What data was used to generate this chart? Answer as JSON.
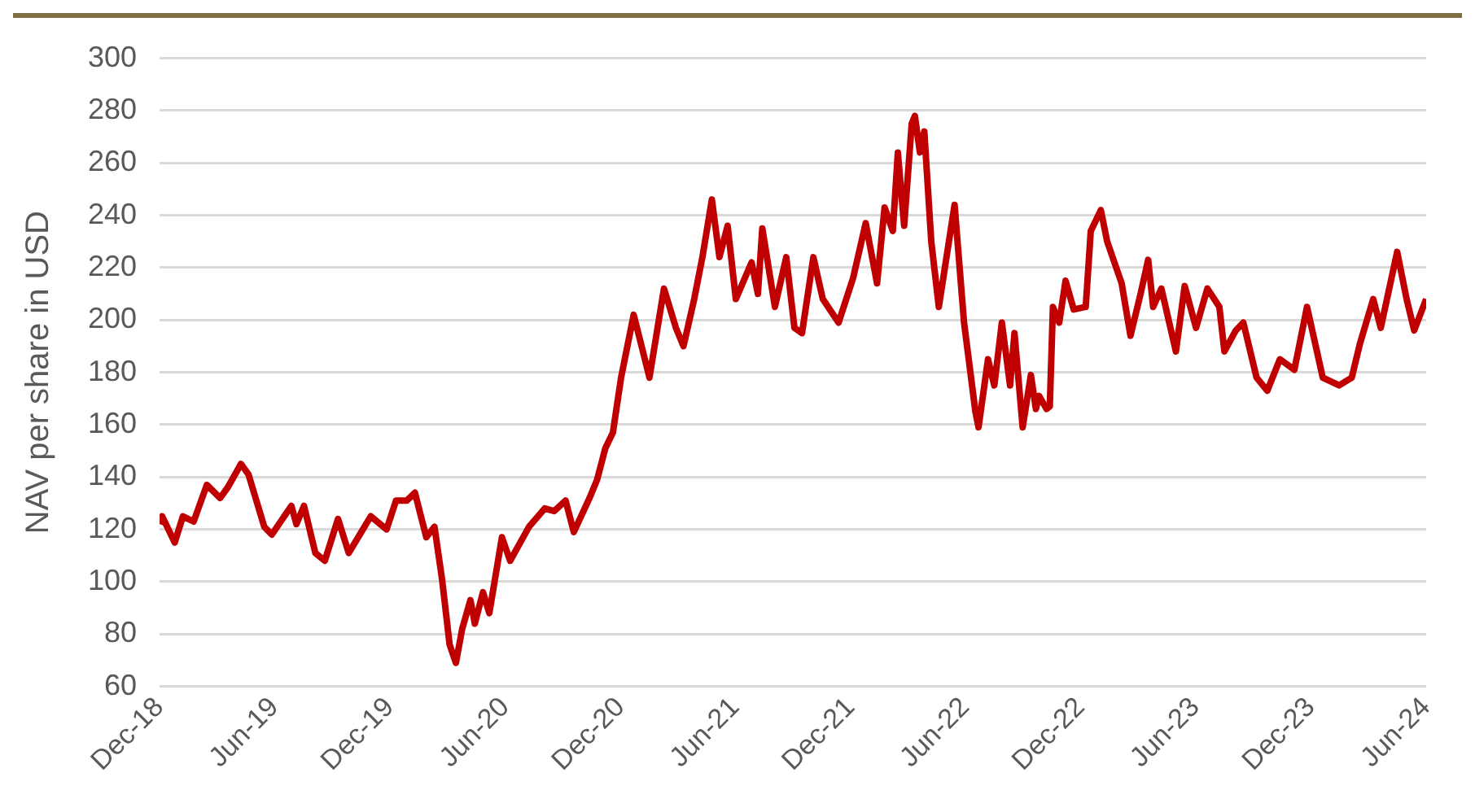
{
  "chart_data": {
    "type": "line",
    "ylabel": "NAV per share in USD",
    "x": [
      "2018-12-01",
      "2018-12-05",
      "2018-12-25",
      "2019-01-07",
      "2019-01-24",
      "2019-02-14",
      "2019-03-07",
      "2019-03-19",
      "2019-04-09",
      "2019-04-21",
      "2019-05-16",
      "2019-05-28",
      "2019-06-28",
      "2019-07-06",
      "2019-07-18",
      "2019-08-05",
      "2019-08-20",
      "2019-09-10",
      "2019-09-27",
      "2019-11-01",
      "2019-11-26",
      "2019-12-11",
      "2019-12-28",
      "2020-01-10",
      "2020-01-28",
      "2020-02-10",
      "2020-02-22",
      "2020-03-05",
      "2020-03-15",
      "2020-03-25",
      "2020-04-07",
      "2020-04-14",
      "2020-04-27",
      "2020-05-07",
      "2020-05-27",
      "2020-06-09",
      "2020-07-09",
      "2020-08-03",
      "2020-08-18",
      "2020-09-05",
      "2020-09-18",
      "2020-10-13",
      "2020-10-25",
      "2020-11-07",
      "2020-11-19",
      "2020-12-02",
      "2020-12-22",
      "2021-01-16",
      "2021-02-08",
      "2021-02-27",
      "2021-03-11",
      "2021-03-28",
      "2021-04-10",
      "2021-04-25",
      "2021-05-07",
      "2021-05-20",
      "2021-06-02",
      "2021-06-27",
      "2021-07-07",
      "2021-07-14",
      "2021-08-03",
      "2021-08-21",
      "2021-09-03",
      "2021-09-15",
      "2021-10-03",
      "2021-10-18",
      "2021-11-12",
      "2021-12-05",
      "2021-12-25",
      "2022-01-12",
      "2022-01-24",
      "2022-02-06",
      "2022-02-14",
      "2022-02-24",
      "2022-03-08",
      "2022-03-13",
      "2022-03-21",
      "2022-03-28",
      "2022-04-08",
      "2022-04-20",
      "2022-05-15",
      "2022-05-30",
      "2022-06-17",
      "2022-06-22",
      "2022-07-07",
      "2022-07-17",
      "2022-07-29",
      "2022-08-11",
      "2022-08-18",
      "2022-08-31",
      "2022-09-13",
      "2022-09-21",
      "2022-09-26",
      "2022-10-08",
      "2022-10-13",
      "2022-10-18",
      "2022-10-28",
      "2022-11-07",
      "2022-11-20",
      "2022-12-09",
      "2022-12-17",
      "2023-01-02",
      "2023-01-12",
      "2023-02-04",
      "2023-02-18",
      "2023-03-06",
      "2023-03-18",
      "2023-03-26",
      "2023-04-08",
      "2023-05-01",
      "2023-05-15",
      "2023-06-02",
      "2023-06-20",
      "2023-07-09",
      "2023-07-17",
      "2023-08-04",
      "2023-08-16",
      "2023-09-06",
      "2023-09-23",
      "2023-10-13",
      "2023-11-05",
      "2023-11-25",
      "2023-12-20",
      "2024-01-15",
      "2024-02-04",
      "2024-02-17",
      "2024-03-09",
      "2024-03-21",
      "2024-04-16",
      "2024-05-01",
      "2024-05-13",
      "2024-06-01"
    ],
    "series": [
      {
        "color": "#c00000",
        "values": [
          122,
          125,
          115,
          125,
          123,
          137,
          132,
          136,
          145,
          141,
          121,
          118,
          129,
          122,
          129,
          111,
          108,
          124,
          111,
          125,
          120,
          131,
          131,
          134,
          117,
          121,
          101,
          76,
          69,
          82,
          93,
          84,
          96,
          88,
          117,
          108,
          121,
          128,
          127,
          131,
          119,
          132,
          139,
          151,
          157,
          178,
          202,
          178,
          212,
          197,
          190,
          208,
          224,
          246,
          224,
          236,
          208,
          222,
          210,
          235,
          205,
          224,
          197,
          195,
          224,
          208,
          199,
          216,
          237,
          214,
          243,
          234,
          264,
          236,
          275,
          278,
          264,
          272,
          230,
          205,
          244,
          199,
          165,
          159,
          185,
          175,
          199,
          175,
          195,
          159,
          179,
          166,
          171,
          166,
          167,
          205,
          199,
          215,
          204,
          205,
          234,
          242,
          230,
          214,
          194,
          210,
          223,
          205,
          212,
          188,
          213,
          197,
          212,
          205,
          188,
          196,
          199,
          178,
          173,
          185,
          181,
          205,
          178,
          175,
          178,
          191,
          208,
          197,
          226,
          208,
          196,
          208
        ]
      }
    ],
    "xlim": [
      "2018-12-01",
      "2024-06-01"
    ],
    "xticks": [
      {
        "value": "2018-12-01",
        "label": "Dec-18"
      },
      {
        "value": "2019-06-01",
        "label": "Jun-19"
      },
      {
        "value": "2019-12-01",
        "label": "Dec-19"
      },
      {
        "value": "2020-06-01",
        "label": "Jun-20"
      },
      {
        "value": "2020-12-01",
        "label": "Dec-20"
      },
      {
        "value": "2021-06-01",
        "label": "Jun-21"
      },
      {
        "value": "2021-12-01",
        "label": "Dec-21"
      },
      {
        "value": "2022-06-01",
        "label": "Jun-22"
      },
      {
        "value": "2022-12-01",
        "label": "Dec-22"
      },
      {
        "value": "2023-06-01",
        "label": "Jun-23"
      },
      {
        "value": "2023-12-01",
        "label": "Dec-23"
      },
      {
        "value": "2024-06-01",
        "label": "Jun-24"
      }
    ],
    "ylim": [
      60,
      300
    ],
    "yticks": [
      60,
      80,
      100,
      120,
      140,
      160,
      180,
      200,
      220,
      240,
      260,
      280,
      300
    ],
    "grid": "y",
    "legend": false
  }
}
